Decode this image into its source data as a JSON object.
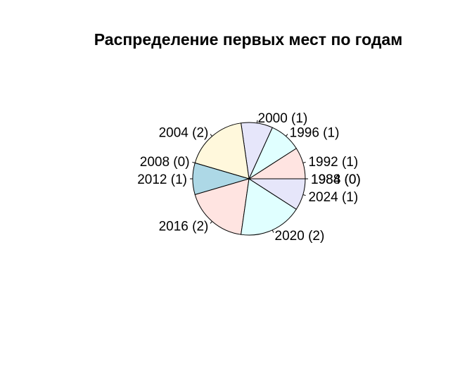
{
  "chart_data": {
    "type": "pie",
    "title": "Распределение первых мест по годам",
    "start_angle_deg": 0,
    "direction": "counterclockwise",
    "slices": [
      {
        "label": "1988 (0)",
        "value": 0,
        "color": "#ffffff"
      },
      {
        "label": "1992 (1)",
        "value": 1,
        "color": "#ffe4e1"
      },
      {
        "label": "1996 (1)",
        "value": 1,
        "color": "#e0ffff"
      },
      {
        "label": "2000 (1)",
        "value": 1,
        "color": "#e6e6fa"
      },
      {
        "label": "2004 (2)",
        "value": 2,
        "color": "#fff8dc"
      },
      {
        "label": "2008 (0)",
        "value": 0,
        "color": "#f0f8ff"
      },
      {
        "label": "2012 (1)",
        "value": 1,
        "color": "#add8e6"
      },
      {
        "label": "2016 (2)",
        "value": 2,
        "color": "#ffe4e1"
      },
      {
        "label": "2020 (2)",
        "value": 2,
        "color": "#e0ffff"
      },
      {
        "label": "2024 (1)",
        "value": 1,
        "color": "#e6e6fa"
      },
      {
        "label": "1984 (0)",
        "value": 0,
        "color": "#ffffff"
      }
    ]
  }
}
